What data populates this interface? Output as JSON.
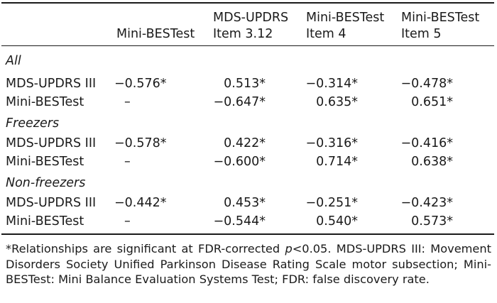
{
  "headers": {
    "col1": [
      "Mini-BESTest"
    ],
    "col2": [
      "MDS-UPDRS",
      "Item 3.12"
    ],
    "col3": [
      "Mini-BESTest",
      "Item 4"
    ],
    "col4": [
      "Mini-BESTest",
      "Item 5"
    ]
  },
  "groups": [
    {
      "label": "All",
      "rows": [
        {
          "label": "MDS-UPDRS III",
          "values": [
            "−0.576*",
            "0.513*",
            "−0.314*",
            "−0.478*"
          ]
        },
        {
          "label": "Mini-BESTest",
          "values": [
            "–",
            "−0.647*",
            "0.635*",
            "0.651*"
          ]
        }
      ]
    },
    {
      "label": "Freezers",
      "rows": [
        {
          "label": "MDS-UPDRS III",
          "values": [
            "−0.578*",
            "0.422*",
            "−0.316*",
            "−0.416*"
          ]
        },
        {
          "label": "Mini-BESTest",
          "values": [
            "–",
            "−0.600*",
            "0.714*",
            "0.638*"
          ]
        }
      ]
    },
    {
      "label": "Non-freezers",
      "rows": [
        {
          "label": "MDS-UPDRS III",
          "values": [
            "−0.442*",
            "0.453*",
            "−0.251*",
            "−0.423*"
          ]
        },
        {
          "label": "Mini-BESTest",
          "values": [
            "–",
            "−0.544*",
            "0.540*",
            "0.573*"
          ]
        }
      ]
    }
  ],
  "footnote": {
    "before": "*Relationships are significant at FDR-corrected ",
    "italic": "p",
    "after": "<0.05. MDS-UPDRS III: Movement Disorders Society Unified Parkinson Disease Rating Scale motor subsection; Mini-BESTest: Mini Balance Evaluation Systems Test; FDR: false discovery rate."
  }
}
